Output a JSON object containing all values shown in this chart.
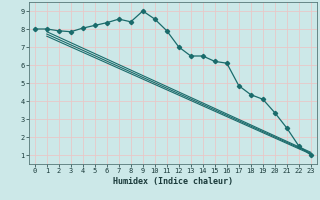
{
  "xlabel": "Humidex (Indice chaleur)",
  "bg_color": "#cce8e8",
  "grid_color": "#e8c8c8",
  "line_color": "#1a6b6b",
  "xlim": [
    -0.5,
    23.5
  ],
  "ylim": [
    0.5,
    9.5
  ],
  "xticks": [
    0,
    1,
    2,
    3,
    4,
    5,
    6,
    7,
    8,
    9,
    10,
    11,
    12,
    13,
    14,
    15,
    16,
    17,
    18,
    19,
    20,
    21,
    22,
    23
  ],
  "yticks": [
    1,
    2,
    3,
    4,
    5,
    6,
    7,
    8,
    9
  ],
  "main_x": [
    0,
    1,
    2,
    3,
    4,
    5,
    6,
    7,
    8,
    9,
    10,
    11,
    12,
    13,
    14,
    15,
    16,
    17,
    18,
    19,
    20,
    21,
    22,
    23
  ],
  "main_y": [
    8.0,
    8.0,
    7.9,
    7.85,
    8.05,
    8.2,
    8.35,
    8.55,
    8.4,
    9.0,
    8.55,
    7.9,
    7.0,
    6.5,
    6.5,
    6.2,
    6.1,
    4.85,
    4.35,
    4.1,
    3.35,
    2.5,
    1.5,
    1.0
  ],
  "line1_x": [
    1,
    23
  ],
  "line1_y": [
    7.6,
    1.05
  ],
  "line2_x": [
    1,
    23
  ],
  "line2_y": [
    7.72,
    1.1
  ],
  "line3_x": [
    1,
    23
  ],
  "line3_y": [
    7.85,
    1.15
  ]
}
